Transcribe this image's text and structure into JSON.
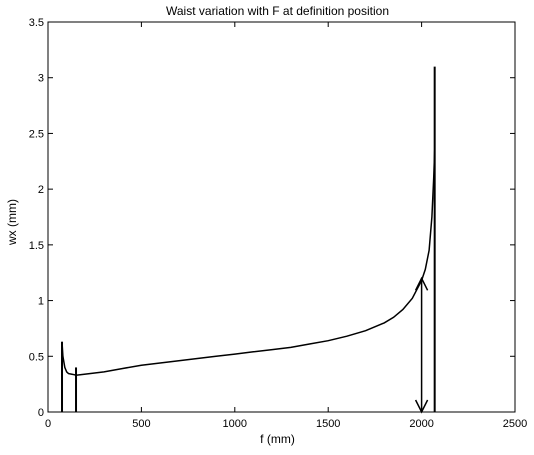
{
  "chart_data": {
    "type": "line",
    "title": "Waist variation with F at definition position",
    "xlabel": "f (mm)",
    "ylabel": "wx (mm)",
    "xlim": [
      0,
      2500
    ],
    "ylim": [
      0,
      3.5
    ],
    "xticks": [
      "0",
      "500",
      "1000",
      "1500",
      "2000",
      "2500"
    ],
    "yticks": [
      "0",
      "0.5",
      "1",
      "1.5",
      "2",
      "2.5",
      "3",
      "3.5"
    ],
    "grid": false,
    "series": [
      {
        "x": [
          75,
          80,
          90,
          100,
          110,
          125,
          140,
          150,
          200,
          300,
          400,
          500,
          600,
          700,
          800,
          900,
          1000,
          1100,
          1200,
          1300,
          1400,
          1500,
          1600,
          1700,
          1800,
          1850,
          1900,
          1950,
          2000,
          2020,
          2040,
          2055,
          2065,
          2070
        ],
        "y": [
          0.63,
          0.5,
          0.4,
          0.36,
          0.345,
          0.34,
          0.335,
          0.33,
          0.34,
          0.36,
          0.39,
          0.42,
          0.44,
          0.46,
          0.48,
          0.5,
          0.52,
          0.54,
          0.56,
          0.58,
          0.61,
          0.64,
          0.68,
          0.73,
          0.8,
          0.85,
          0.92,
          1.02,
          1.18,
          1.28,
          1.45,
          1.75,
          2.1,
          2.35
        ],
        "color": "#000000"
      }
    ],
    "vertical_lines": [
      {
        "x": 75,
        "y0": 0,
        "y1": 0.63
      },
      {
        "x": 150,
        "y0": 0,
        "y1": 0.4
      },
      {
        "x": 2070,
        "y0": 0,
        "y1": 3.1
      }
    ],
    "annotations": [
      {
        "type": "double-arrow",
        "x": 2000,
        "y0": 0,
        "y1": 1.2
      }
    ]
  }
}
